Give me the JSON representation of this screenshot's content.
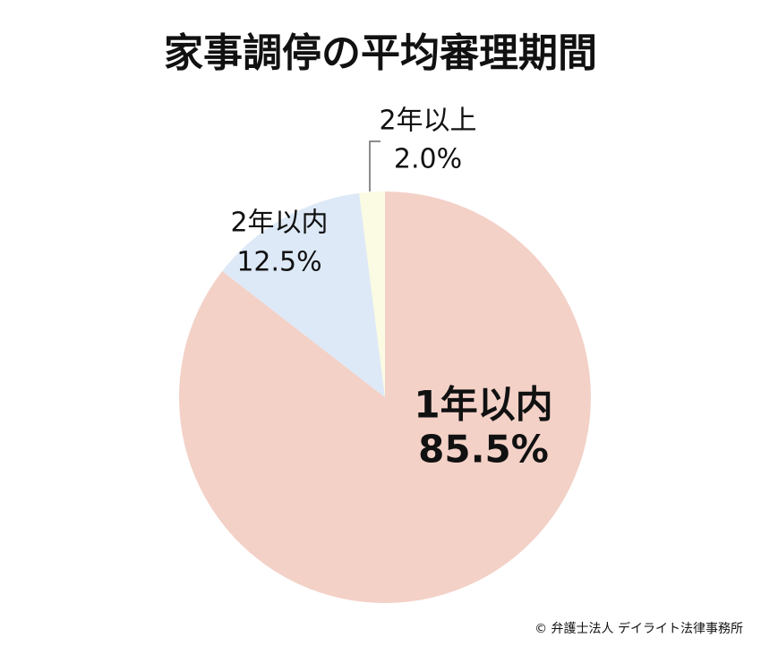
{
  "chart_data": {
    "type": "pie",
    "title": "家事調停の平均審理期間",
    "categories": [
      "1年以内",
      "2年以内",
      "2年以上"
    ],
    "values": [
      85.5,
      12.5,
      2.0
    ],
    "value_labels": [
      "85.5%",
      "12.5%",
      "2.0%"
    ],
    "colors": [
      "#f3d1c7",
      "#dde9f6",
      "#fbfae2"
    ],
    "credit": "© 弁護士法人 デイライト法律事務所"
  }
}
